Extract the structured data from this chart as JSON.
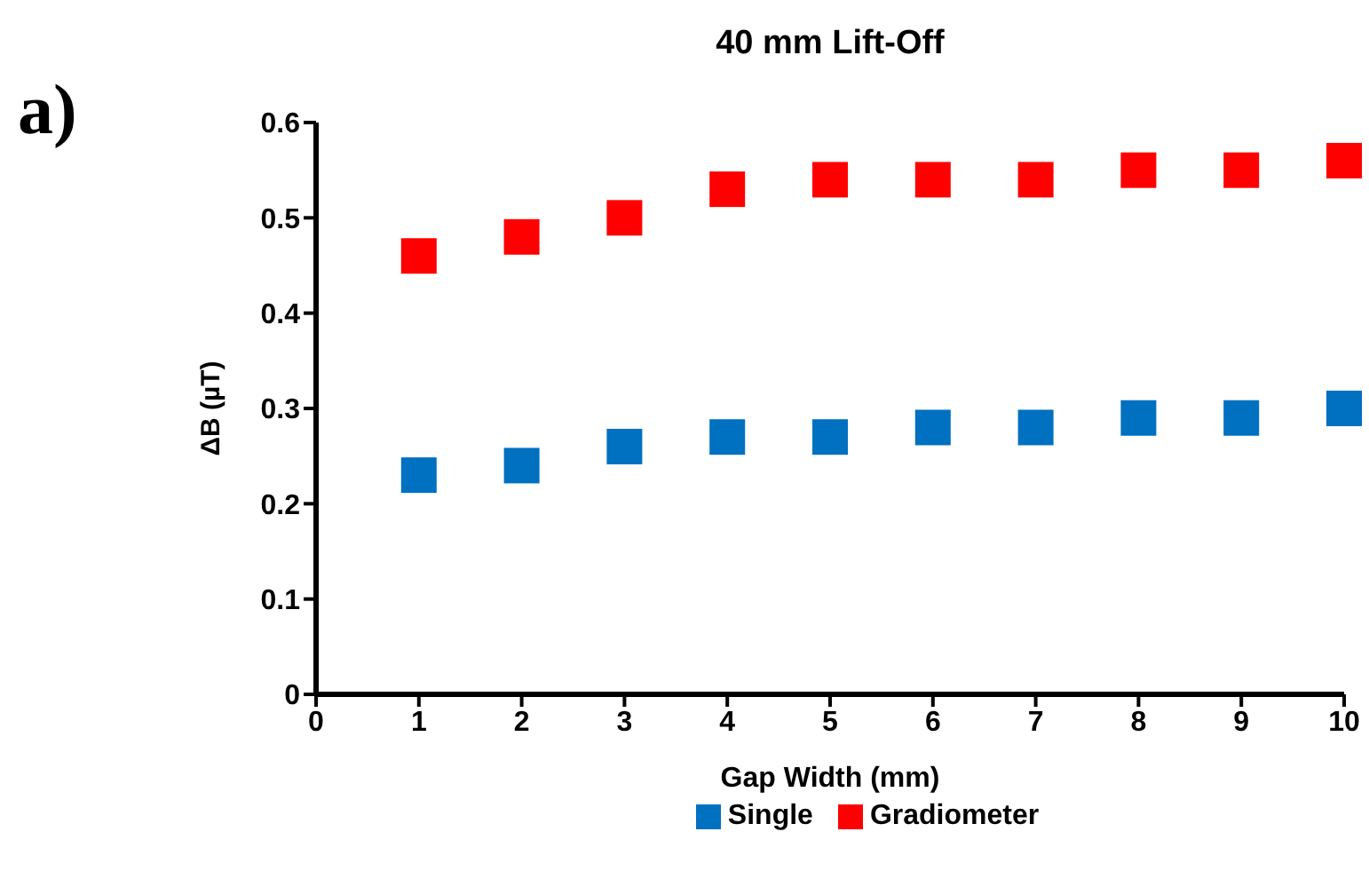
{
  "chart_data": {
    "type": "scatter",
    "title": "40 mm Lift-Off",
    "xlabel": "Gap Width (mm)",
    "ylabel": "ΔB (µT)",
    "annotations": [
      "a)"
    ],
    "x": [
      1,
      2,
      3,
      4,
      5,
      6,
      7,
      8,
      9,
      10
    ],
    "series": [
      {
        "name": "Single",
        "color": "#0070c0",
        "values": [
          0.23,
          0.24,
          0.26,
          0.27,
          0.27,
          0.28,
          0.28,
          0.29,
          0.29,
          0.3
        ]
      },
      {
        "name": "Gradiometer",
        "color": "#ff0000",
        "values": [
          0.46,
          0.48,
          0.5,
          0.53,
          0.54,
          0.54,
          0.54,
          0.55,
          0.55,
          0.56
        ]
      }
    ],
    "xlim": [
      0,
      10
    ],
    "xticks": [
      0,
      1,
      2,
      3,
      4,
      5,
      6,
      7,
      8,
      9,
      10
    ],
    "ylim": [
      0,
      0.6
    ],
    "yticks": [
      0,
      0.1,
      0.2,
      0.3,
      0.4,
      0.5,
      0.6
    ],
    "marker": "square",
    "legend": "bottom",
    "grid": false
  }
}
